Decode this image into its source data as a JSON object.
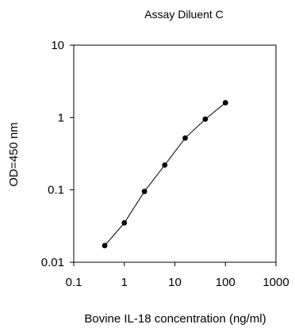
{
  "chart_data": {
    "type": "line",
    "title": "Assay Diluent C",
    "xlabel": "Bovine IL-18 concentration (ng/ml)",
    "ylabel": "OD=450 nm",
    "xscale": "log",
    "yscale": "log",
    "xlim": [
      0.1,
      1000
    ],
    "ylim": [
      0.01,
      10
    ],
    "xticks": [
      "0.1",
      "1",
      "10",
      "100",
      "1000"
    ],
    "yticks": [
      "0.01",
      "0.1",
      "1",
      "10"
    ],
    "grid": false,
    "legend": "none",
    "series": [
      {
        "x": [
          0.41,
          1.0,
          2.5,
          6.3,
          16,
          40,
          100
        ],
        "y": [
          0.017,
          0.035,
          0.095,
          0.22,
          0.52,
          0.95,
          1.6
        ]
      }
    ],
    "colors": {
      "line": "#000000",
      "marker": "#000000",
      "axis": "#000000",
      "background": "#ffffff"
    }
  }
}
